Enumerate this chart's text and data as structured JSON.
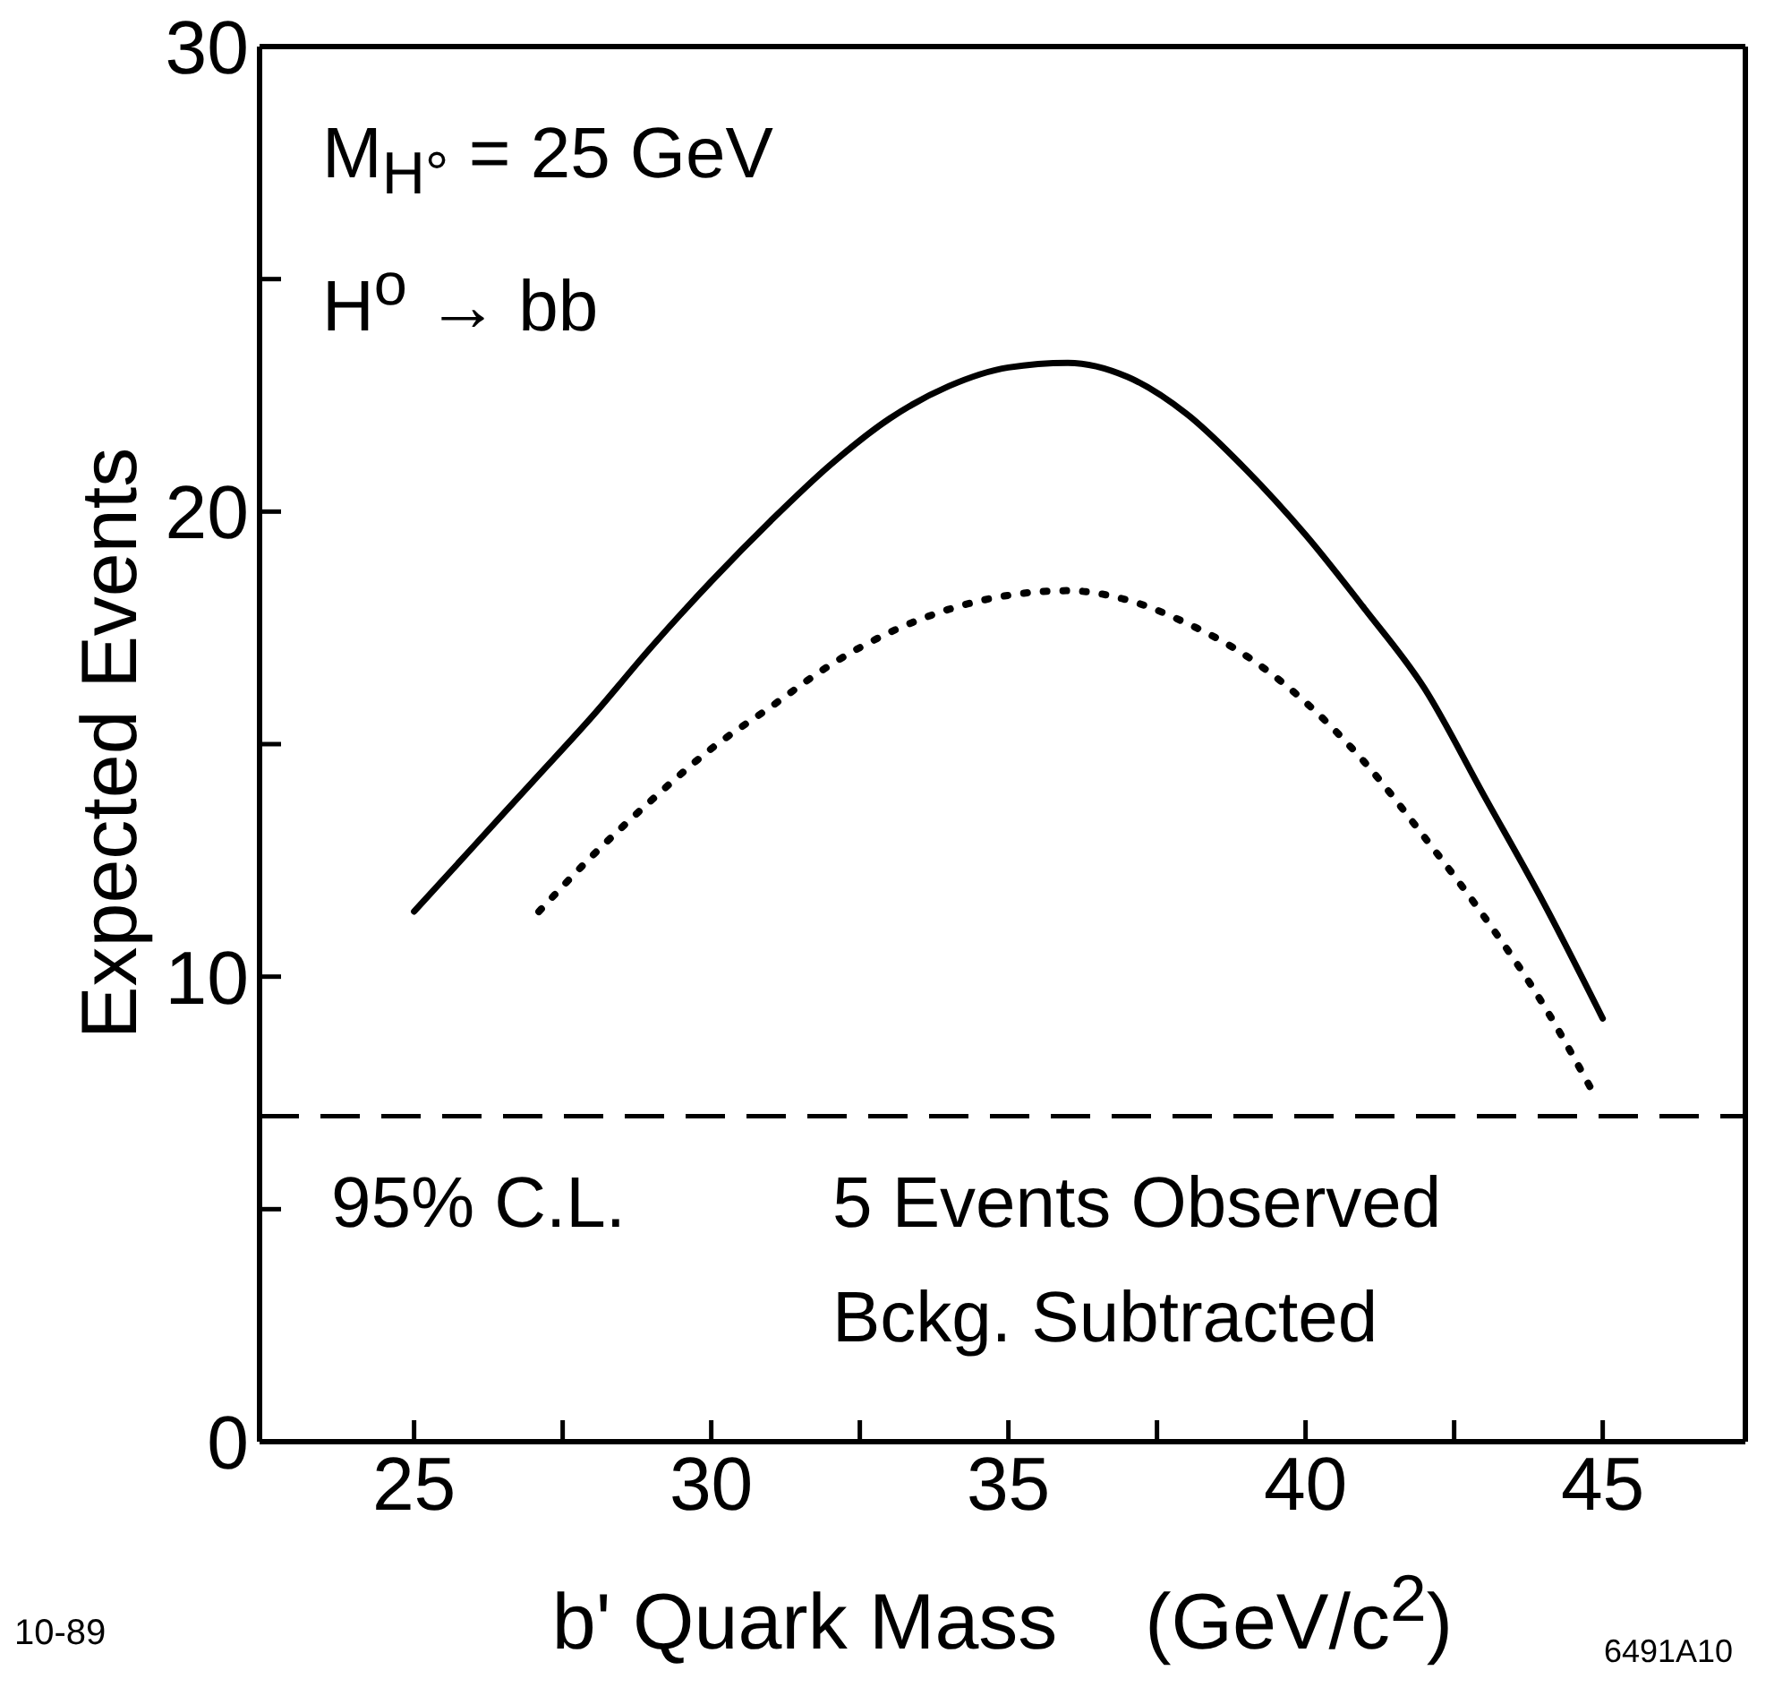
{
  "chart_data": {
    "type": "line",
    "xlabel": "b' Quark Mass    (GeV/c$^{2}$)",
    "ylabel": "Expected Events",
    "xlim": [
      22.4,
      47.4
    ],
    "ylim": [
      0,
      30
    ],
    "xticks": [
      25,
      {
        "value": 27.5,
        "label": null
      },
      30,
      {
        "value": 32.5,
        "label": null
      },
      35,
      {
        "value": 37.5,
        "label": null
      },
      40,
      {
        "value": 42.5,
        "label": null
      },
      45
    ],
    "yticks": [
      0,
      {
        "value": 5,
        "label": null
      },
      10,
      {
        "value": 15,
        "label": null
      },
      20,
      {
        "value": 25,
        "label": null
      },
      30
    ],
    "series": [
      {
        "color": "#000000",
        "line_style": "solid",
        "x": [
          25,
          26,
          27,
          28,
          29,
          30,
          31,
          32,
          33,
          34,
          35,
          36,
          37,
          38,
          39,
          40,
          41,
          42,
          43,
          44,
          45
        ],
        "values": [
          11.4,
          12.8,
          14.2,
          15.6,
          17.1,
          18.5,
          19.8,
          21.0,
          22.0,
          22.7,
          23.1,
          23.2,
          22.9,
          22.1,
          20.9,
          19.5,
          17.9,
          16.2,
          13.9,
          11.6,
          9.1
        ]
      },
      {
        "color": "#000000",
        "line_style": "dotted",
        "x": [
          27.1,
          28,
          29,
          30,
          31,
          32,
          33,
          34,
          35,
          36,
          37,
          38,
          39,
          40,
          41,
          42,
          43,
          44,
          44.8
        ],
        "values": [
          11.4,
          12.6,
          13.8,
          14.9,
          15.8,
          16.7,
          17.4,
          17.9,
          18.2,
          18.3,
          18.1,
          17.6,
          16.9,
          15.9,
          14.6,
          13.0,
          11.3,
          9.4,
          7.6
        ]
      }
    ],
    "ref_lines": [
      {
        "axis": "y",
        "value": 7,
        "line_style": "dashed",
        "color": "#000000"
      }
    ],
    "annotations": [
      "M$_{H°}$ = 25 GeV",
      "H$^{o}$ → bb",
      "95% C.L.",
      "5 Events Observed",
      "Bckg. Subtracted",
      "10-89",
      "6491A10"
    ]
  }
}
